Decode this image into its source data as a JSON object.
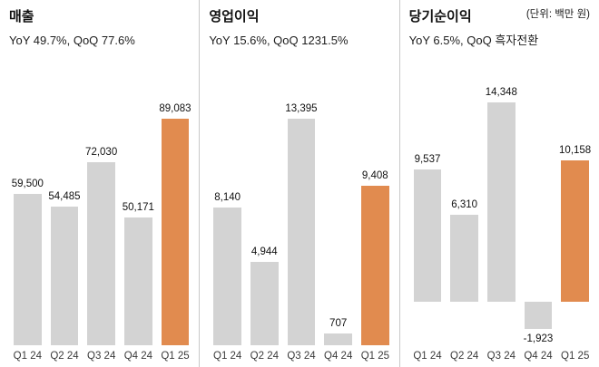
{
  "unit_label": "(단위: 백만 원)",
  "colors": {
    "bar": "#d3d3d3",
    "highlight": "#e18b4f",
    "divider": "#c9c9c9",
    "text": "#111111"
  },
  "chart_data": [
    {
      "type": "bar",
      "title": "매출",
      "subtitle": "YoY 49.7%, QoQ 77.6%",
      "categories": [
        "Q1 24",
        "Q2 24",
        "Q3 24",
        "Q4 24",
        "Q1 25"
      ],
      "values": [
        59500,
        54485,
        72030,
        50171,
        89083
      ],
      "labels": [
        "59,500",
        "54,485",
        "72,030",
        "50,171",
        "89,083"
      ],
      "highlight_index": 4,
      "ylim": [
        0,
        90000
      ],
      "grid": false,
      "legend": false
    },
    {
      "type": "bar",
      "title": "영업이익",
      "subtitle": "YoY 15.6%, QoQ 1231.5%",
      "categories": [
        "Q1 24",
        "Q2 24",
        "Q3 24",
        "Q4 24",
        "Q1 25"
      ],
      "values": [
        8140,
        4944,
        13395,
        707,
        9408
      ],
      "labels": [
        "8,140",
        "4,944",
        "13,395",
        "707",
        "9,408"
      ],
      "highlight_index": 4,
      "ylim": [
        0,
        13500
      ],
      "grid": false,
      "legend": false
    },
    {
      "type": "bar",
      "title": "당기순이익",
      "subtitle": "YoY 6.5%, QoQ 흑자전환",
      "categories": [
        "Q1 24",
        "Q2 24",
        "Q3 24",
        "Q4 24",
        "Q1 25"
      ],
      "values": [
        9537,
        6310,
        14348,
        -1923,
        10158
      ],
      "labels": [
        "9,537",
        "6,310",
        "14,348",
        "-1,923",
        "10,158"
      ],
      "highlight_index": 4,
      "ylim": [
        -2000,
        14500
      ],
      "grid": false,
      "legend": false
    }
  ]
}
